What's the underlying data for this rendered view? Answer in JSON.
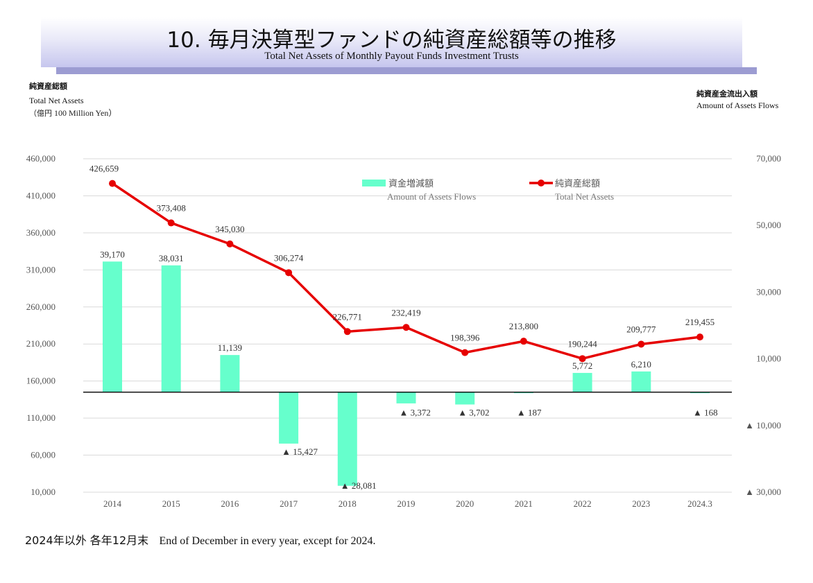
{
  "header": {
    "title_jp": "10. 毎月決算型ファンドの純資産総額等の推移",
    "title_en": "Total Net Assets of Monthly Payout Funds Investment Trusts"
  },
  "left_axis_note": {
    "jp": "純資産総額",
    "en": "Total Net Assets",
    "unit_jp": "（億円",
    "unit_en": " 100 Million Yen）"
  },
  "right_axis_note": {
    "jp": "純資産金流出入額",
    "en": "Amount of Assets Flows"
  },
  "footer": {
    "jp": "2024年以外 各年12月末",
    "en": "End  of December in every year, except for 2024."
  },
  "chart_data": {
    "type": "bar",
    "categories": [
      "2014",
      "2015",
      "2016",
      "2017",
      "2018",
      "2019",
      "2020",
      "2021",
      "2022",
      "2023",
      "2024.3"
    ],
    "series": [
      {
        "name": "資金増減額 Amount of Assets Flows",
        "legend_jp": "資金増減額",
        "legend_en": "Amount of Assets Flows",
        "type": "bar",
        "axis": "right",
        "color": "#66ffcc",
        "values": [
          39170,
          38031,
          11139,
          -15427,
          -28081,
          -3372,
          -3702,
          -187,
          5772,
          6210,
          -168
        ],
        "labels": [
          "39,170",
          "38,031",
          "11,139",
          "▲ 15,427",
          "▲ 28,081",
          "▲ 3,372",
          "▲ 3,702",
          "▲ 187",
          "5,772",
          "6,210",
          "▲ 168"
        ]
      },
      {
        "name": "純資産総額 Total Net Assets",
        "legend_jp": "純資産総額",
        "legend_en": "Total Net Assets",
        "type": "line",
        "axis": "left",
        "color": "#e60000",
        "values": [
          426659,
          373408,
          345030,
          306274,
          226771,
          232419,
          198396,
          213800,
          190244,
          209777,
          219455
        ],
        "labels": [
          "426,659",
          "373,408",
          "345,030",
          "306,274",
          "226,771",
          "232,419",
          "198,396",
          "213,800",
          "190,244",
          "209,777",
          "219,455"
        ]
      }
    ],
    "left_axis": {
      "min": 10000,
      "max": 460000,
      "ticks": [
        460000,
        410000,
        360000,
        310000,
        260000,
        210000,
        160000,
        110000,
        60000,
        10000
      ],
      "tick_labels": [
        "460,000",
        "410,000",
        "360,000",
        "310,000",
        "260,000",
        "210,000",
        "160,000",
        "110,000",
        "60,000",
        "10,000"
      ]
    },
    "right_axis": {
      "min": -30000,
      "max": 70000,
      "ticks": [
        70000,
        50000,
        30000,
        10000,
        -10000,
        -30000
      ],
      "tick_labels": [
        "70,000",
        "50,000",
        "30,000",
        "10,000",
        "▲ 10,000",
        "▲ 30,000"
      ]
    },
    "grid": true,
    "legend_position": "top-right"
  }
}
